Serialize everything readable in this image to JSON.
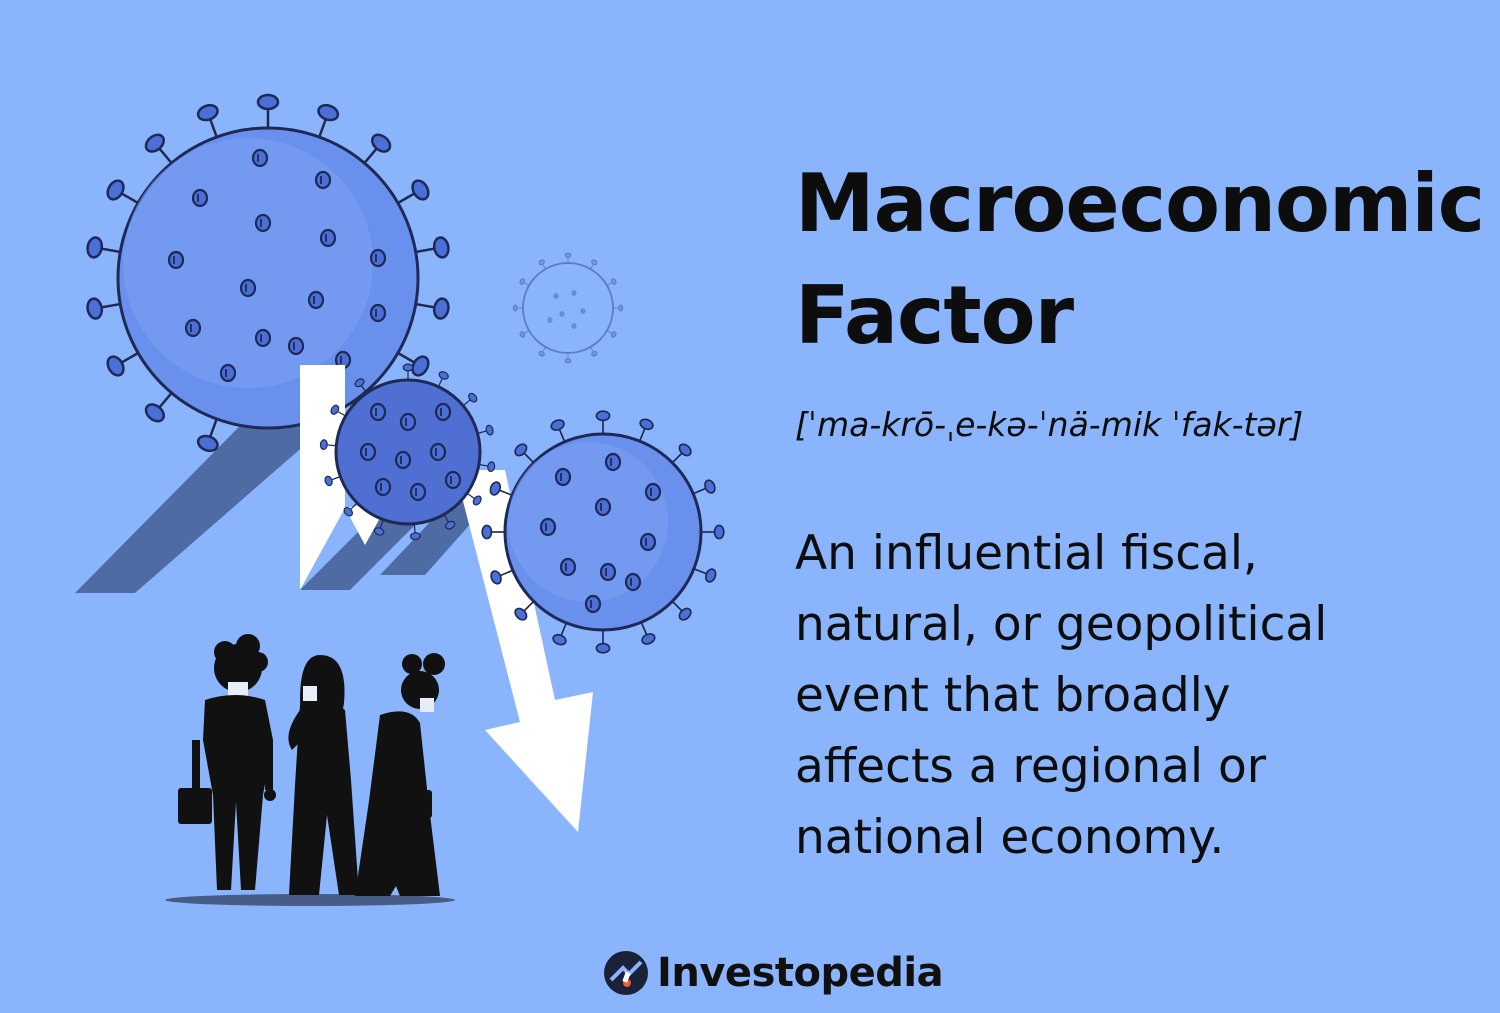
{
  "header": {
    "title_line1": "Macroeconomic",
    "title_line2": "Factor"
  },
  "pronunciation": "[ˈma-krō-ˌe-kə-ˈnä-mik ˈfak-tər]",
  "definition": {
    "lines": [
      "An influential fiscal,",
      "natural, or geopolitical",
      "event that broadly",
      "affects a regional or",
      "national economy."
    ]
  },
  "brand": {
    "name": "Investopedia",
    "logo_icon": "investopedia-logo-icon",
    "colors": {
      "logo_dark": "#1a2238",
      "logo_accent": "#f0583a"
    }
  },
  "colors": {
    "background": "#8ab4fb",
    "virus_body": "#6a90ee",
    "virus_dark": "#4a62b8",
    "virus_outline": "#1e2a55",
    "arrow_shadow": "#4f6ba3",
    "arrow_white": "#ffffff",
    "people": "#111111"
  },
  "illustration": {
    "icons": [
      "virus-large-icon",
      "virus-medium-icon",
      "virus-right-icon",
      "virus-faint-icon",
      "falling-arrow-icon",
      "masked-people-icon"
    ]
  }
}
